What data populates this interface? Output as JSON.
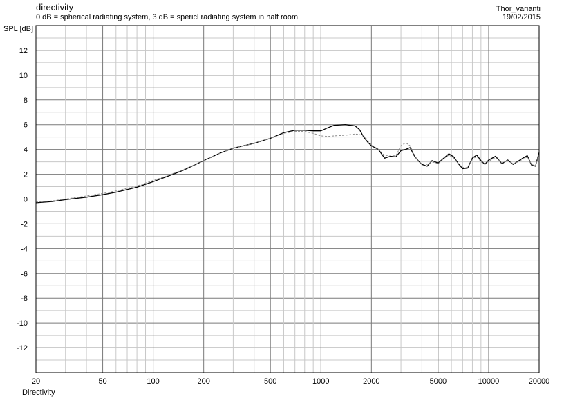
{
  "header": {
    "title": "directivity",
    "subtitle": "0 dB = spherical radiating system, 3 dB = spericl radiating system in half room",
    "project": "Thor_varianti",
    "date": "19/02/2015"
  },
  "legend": {
    "label": "Directivity"
  },
  "chart_data": {
    "type": "line",
    "title": "directivity",
    "subtitle": "0 dB = spherical radiating system, 3 dB = spericl radiating system in half room",
    "xlabel": "",
    "ylabel": "SPL [dB]",
    "xscale": "log",
    "xlim": [
      20,
      20000
    ],
    "ylim": [
      -14,
      14
    ],
    "xticks": [
      20,
      50,
      100,
      200,
      500,
      1000,
      2000,
      5000,
      10000,
      20000
    ],
    "yticks": [
      12,
      10,
      8,
      6,
      4,
      2,
      0,
      -2,
      -4,
      -6,
      -8,
      -10,
      -12
    ],
    "grid": true,
    "legend_position": "bottom-left",
    "series": [
      {
        "name": "Directivity",
        "style": "solid",
        "color": "#000000",
        "x": [
          20,
          25,
          30,
          40,
          50,
          60,
          80,
          100,
          120,
          150,
          200,
          250,
          300,
          400,
          500,
          600,
          700,
          800,
          900,
          1000,
          1100,
          1200,
          1400,
          1600,
          1700,
          1800,
          1900,
          2000,
          2200,
          2400,
          2600,
          2800,
          3000,
          3200,
          3400,
          3600,
          3800,
          4000,
          4300,
          4600,
          5000,
          5400,
          5800,
          6200,
          6600,
          7000,
          7500,
          8000,
          8500,
          9000,
          9500,
          10000,
          11000,
          12000,
          13000,
          14000,
          15000,
          16000,
          17000,
          18000,
          19000,
          20000
        ],
        "y": [
          -0.3,
          -0.2,
          -0.05,
          0.15,
          0.35,
          0.55,
          0.95,
          1.4,
          1.8,
          2.3,
          3.1,
          3.7,
          4.1,
          4.5,
          4.9,
          5.35,
          5.55,
          5.55,
          5.5,
          5.5,
          5.75,
          5.95,
          6.0,
          5.9,
          5.6,
          5.0,
          4.6,
          4.3,
          4.0,
          3.3,
          3.45,
          3.4,
          3.9,
          4.0,
          4.15,
          3.5,
          3.1,
          2.8,
          2.65,
          3.1,
          2.9,
          3.3,
          3.65,
          3.4,
          2.85,
          2.45,
          2.5,
          3.3,
          3.55,
          3.1,
          2.8,
          3.15,
          3.45,
          2.85,
          3.15,
          2.8,
          3.05,
          3.3,
          3.5,
          2.75,
          2.65,
          3.75
        ]
      },
      {
        "name": "",
        "style": "dashed",
        "color": "#888888",
        "x": [
          20,
          25,
          30,
          40,
          50,
          60,
          80,
          100,
          120,
          150,
          200,
          250,
          300,
          400,
          500,
          600,
          700,
          800,
          900,
          1000,
          1100,
          1200,
          1400,
          1600,
          1700,
          1800,
          1900,
          2000,
          2200,
          2400,
          2600,
          2800,
          3000,
          3200,
          3400,
          3600,
          3800,
          4000,
          4300,
          4600,
          5000,
          5400,
          5800,
          6200,
          6600,
          7000,
          7500,
          8000,
          8500,
          9000,
          9500,
          10000,
          11000,
          12000,
          13000,
          14000,
          15000,
          16000,
          17000,
          18000,
          19000,
          20000
        ],
        "y": [
          -0.25,
          -0.15,
          0.0,
          0.25,
          0.45,
          0.65,
          1.05,
          1.5,
          1.85,
          2.35,
          3.1,
          3.7,
          4.1,
          4.5,
          4.9,
          5.3,
          5.45,
          5.45,
          5.3,
          5.1,
          5.05,
          5.1,
          5.15,
          5.25,
          5.2,
          5.1,
          4.75,
          4.4,
          4.0,
          3.5,
          3.55,
          3.5,
          4.3,
          4.55,
          4.3,
          3.6,
          3.05,
          2.85,
          2.8,
          3.0,
          2.85,
          3.25,
          3.55,
          3.3,
          2.85,
          2.55,
          2.55,
          3.2,
          3.45,
          3.0,
          2.8,
          3.05,
          3.35,
          2.9,
          3.1,
          2.85,
          3.0,
          3.2,
          3.4,
          2.8,
          2.7,
          3.65
        ]
      }
    ]
  }
}
